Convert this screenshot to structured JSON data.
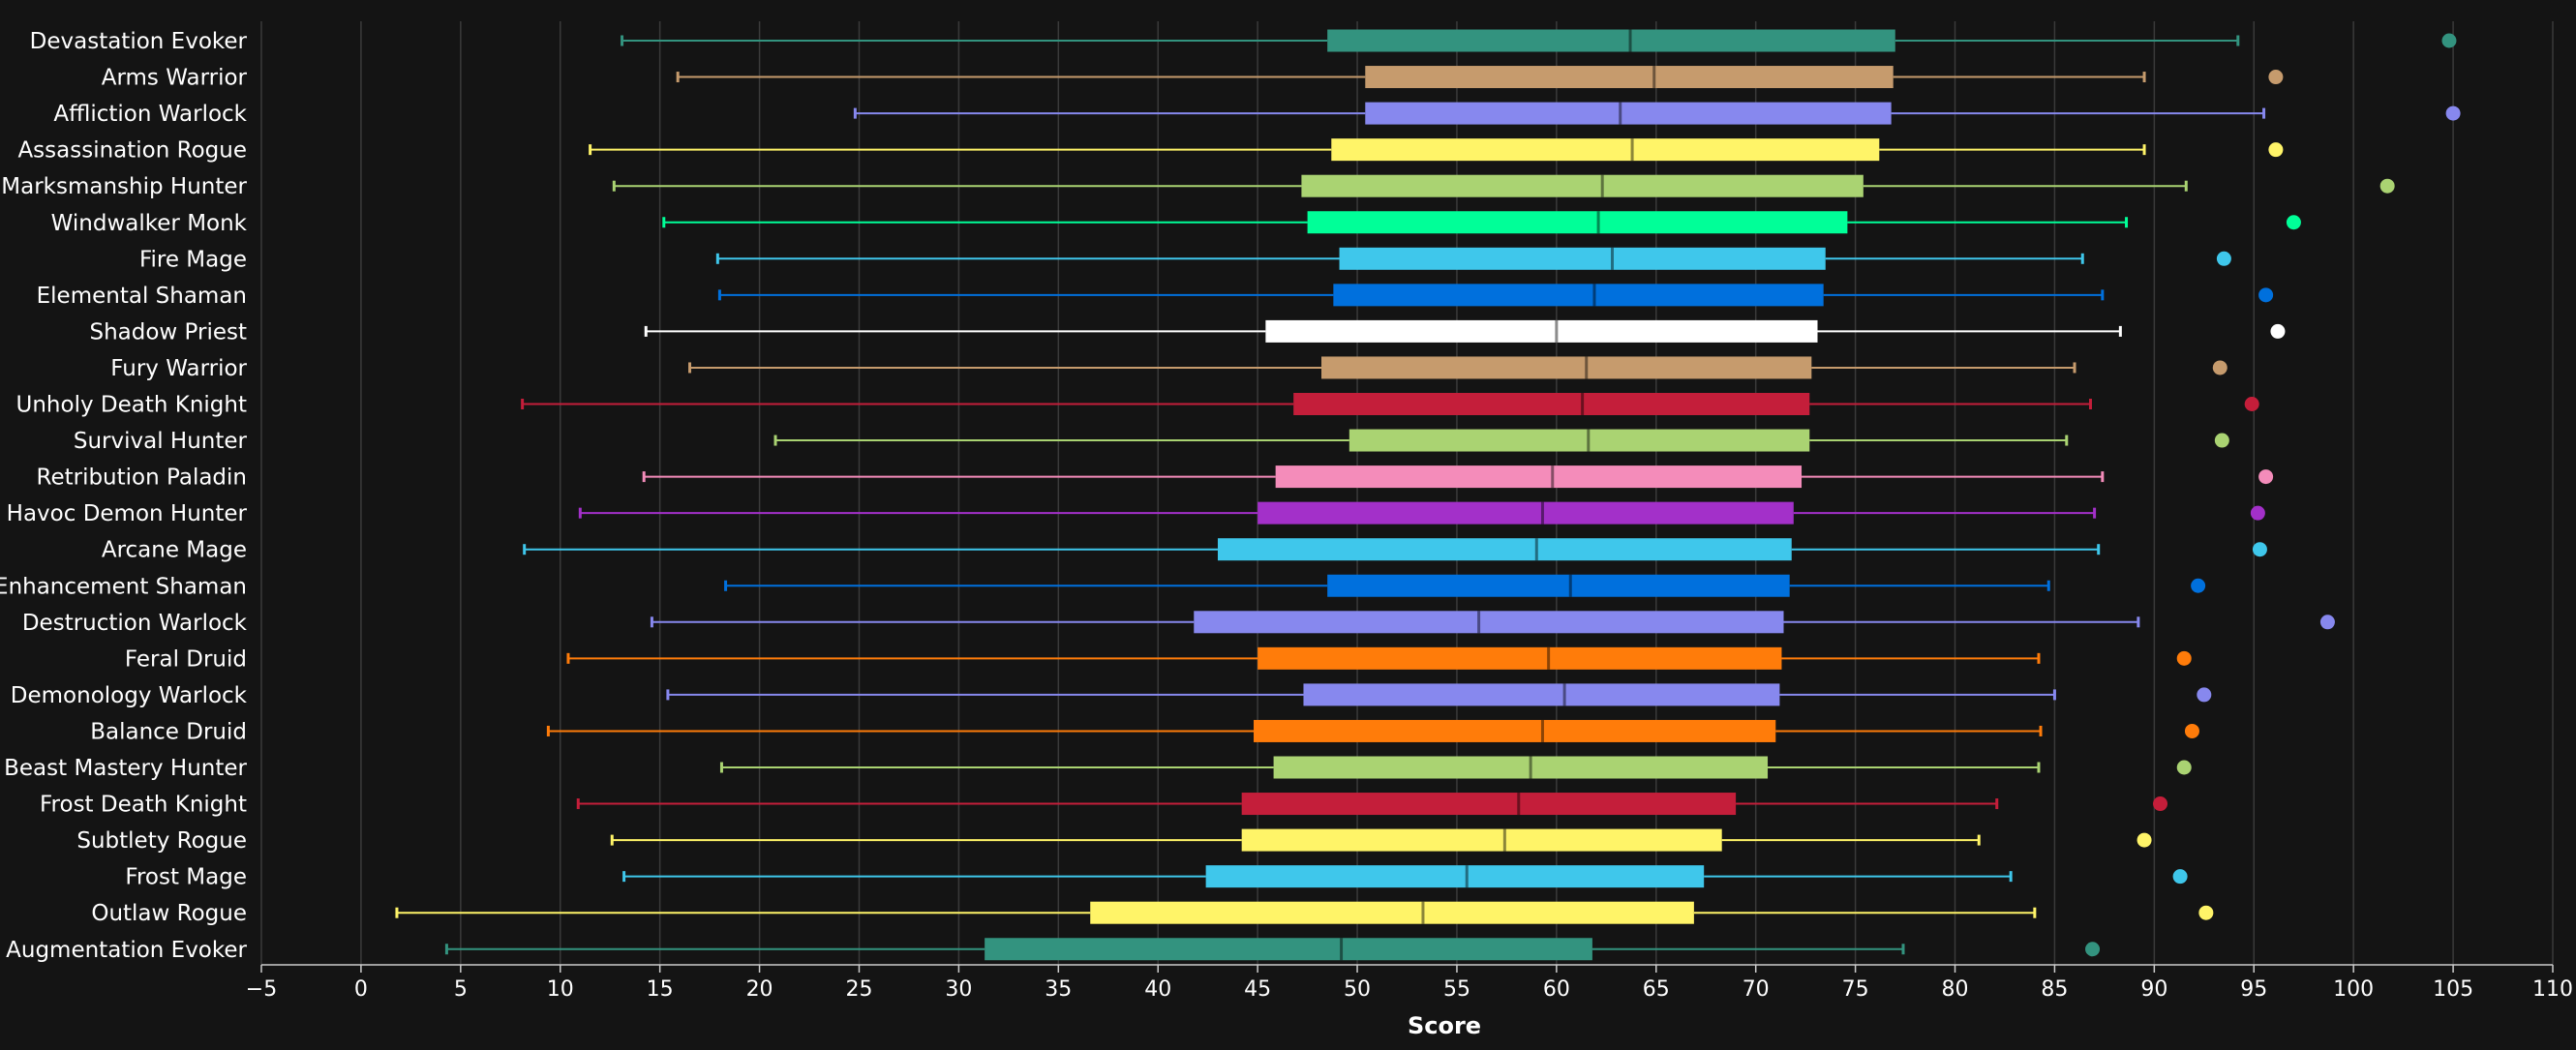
{
  "chart_data": {
    "type": "box",
    "title": "",
    "xlabel": "Score",
    "ylabel": "",
    "xlim": [
      -5,
      110
    ],
    "xticks": [
      "-5",
      "0",
      "5",
      "10",
      "15",
      "20",
      "25",
      "30",
      "35",
      "40",
      "45",
      "50",
      "55",
      "60",
      "65",
      "70",
      "75",
      "80",
      "85",
      "90",
      "95",
      "100",
      "105",
      "110"
    ],
    "grid": true,
    "orientation": "horizontal",
    "categories": [
      "Devastation Evoker",
      "Arms Warrior",
      "Affliction Warlock",
      "Assassination Rogue",
      "Marksmanship Hunter",
      "Windwalker Monk",
      "Fire Mage",
      "Elemental Shaman",
      "Shadow Priest",
      "Fury Warrior",
      "Unholy Death Knight",
      "Survival Hunter",
      "Retribution Paladin",
      "Havoc Demon Hunter",
      "Arcane Mage",
      "Enhancement Shaman",
      "Destruction Warlock",
      "Feral Druid",
      "Demonology Warlock",
      "Balance Druid",
      "Beast Mastery Hunter",
      "Frost Death Knight",
      "Subtlety Rogue",
      "Frost Mage",
      "Outlaw Rogue",
      "Augmentation Evoker"
    ],
    "series": [
      {
        "category": "Devastation Evoker",
        "min": 13.1,
        "q1": 48.5,
        "median": 63.7,
        "q3": 77.0,
        "max": 94.2,
        "outlier": 104.8,
        "color": "#33937f"
      },
      {
        "category": "Arms Warrior",
        "min": 15.9,
        "q1": 50.4,
        "median": 64.9,
        "q3": 76.9,
        "max": 89.5,
        "outlier": 96.1,
        "color": "#c69b6d"
      },
      {
        "category": "Affliction Warlock",
        "min": 24.8,
        "q1": 50.4,
        "median": 63.2,
        "q3": 76.8,
        "max": 95.5,
        "outlier": 105.0,
        "color": "#8788ee"
      },
      {
        "category": "Assassination Rogue",
        "min": 11.5,
        "q1": 48.7,
        "median": 63.8,
        "q3": 76.2,
        "max": 89.5,
        "outlier": 96.1,
        "color": "#fff468"
      },
      {
        "category": "Marksmanship Hunter",
        "min": 12.7,
        "q1": 47.2,
        "median": 62.3,
        "q3": 75.4,
        "max": 91.6,
        "outlier": 101.7,
        "color": "#aad372"
      },
      {
        "category": "Windwalker Monk",
        "min": 15.2,
        "q1": 47.5,
        "median": 62.1,
        "q3": 74.6,
        "max": 88.6,
        "outlier": 97.0,
        "color": "#00ff98"
      },
      {
        "category": "Fire Mage",
        "min": 17.9,
        "q1": 49.1,
        "median": 62.8,
        "q3": 73.5,
        "max": 86.4,
        "outlier": 93.5,
        "color": "#3fc7eb"
      },
      {
        "category": "Elemental Shaman",
        "min": 18.0,
        "q1": 48.8,
        "median": 61.9,
        "q3": 73.4,
        "max": 87.4,
        "outlier": 95.6,
        "color": "#0070dd"
      },
      {
        "category": "Shadow Priest",
        "min": 14.3,
        "q1": 45.4,
        "median": 60.0,
        "q3": 73.1,
        "max": 88.3,
        "outlier": 96.2,
        "color": "#ffffff"
      },
      {
        "category": "Fury Warrior",
        "min": 16.5,
        "q1": 48.2,
        "median": 61.5,
        "q3": 72.8,
        "max": 86.0,
        "outlier": 93.3,
        "color": "#c69b6d"
      },
      {
        "category": "Unholy Death Knight",
        "min": 8.1,
        "q1": 46.8,
        "median": 61.3,
        "q3": 72.7,
        "max": 86.8,
        "outlier": 94.9,
        "color": "#c41e3a"
      },
      {
        "category": "Survival Hunter",
        "min": 20.8,
        "q1": 49.6,
        "median": 61.6,
        "q3": 72.7,
        "max": 85.6,
        "outlier": 93.4,
        "color": "#aad372"
      },
      {
        "category": "Retribution Paladin",
        "min": 14.2,
        "q1": 45.9,
        "median": 59.8,
        "q3": 72.3,
        "max": 87.4,
        "outlier": 95.6,
        "color": "#f48cba"
      },
      {
        "category": "Havoc Demon Hunter",
        "min": 11.0,
        "q1": 45.0,
        "median": 59.3,
        "q3": 71.9,
        "max": 87.0,
        "outlier": 95.2,
        "color": "#a330c9"
      },
      {
        "category": "Arcane Mage",
        "min": 8.2,
        "q1": 43.0,
        "median": 59.0,
        "q3": 71.8,
        "max": 87.2,
        "outlier": 95.3,
        "color": "#3fc7eb"
      },
      {
        "category": "Enhancement Shaman",
        "min": 18.3,
        "q1": 48.5,
        "median": 60.7,
        "q3": 71.7,
        "max": 84.7,
        "outlier": 92.2,
        "color": "#0070dd"
      },
      {
        "category": "Destruction Warlock",
        "min": 14.6,
        "q1": 41.8,
        "median": 56.1,
        "q3": 71.4,
        "max": 89.2,
        "outlier": 98.7,
        "color": "#8788ee"
      },
      {
        "category": "Feral Druid",
        "min": 10.4,
        "q1": 45.0,
        "median": 59.6,
        "q3": 71.3,
        "max": 84.2,
        "outlier": 91.5,
        "color": "#ff7c0a"
      },
      {
        "category": "Demonology Warlock",
        "min": 15.4,
        "q1": 47.3,
        "median": 60.4,
        "q3": 71.2,
        "max": 85.0,
        "outlier": 92.5,
        "color": "#8788ee"
      },
      {
        "category": "Balance Druid",
        "min": 9.4,
        "q1": 44.8,
        "median": 59.3,
        "q3": 71.0,
        "max": 84.3,
        "outlier": 91.9,
        "color": "#ff7c0a"
      },
      {
        "category": "Beast Mastery Hunter",
        "min": 18.1,
        "q1": 45.8,
        "median": 58.7,
        "q3": 70.6,
        "max": 84.2,
        "outlier": 91.5,
        "color": "#aad372"
      },
      {
        "category": "Frost Death Knight",
        "min": 10.9,
        "q1": 44.2,
        "median": 58.1,
        "q3": 69.0,
        "max": 82.1,
        "outlier": 90.3,
        "color": "#c41e3a"
      },
      {
        "category": "Subtlety Rogue",
        "min": 12.6,
        "q1": 44.2,
        "median": 57.4,
        "q3": 68.3,
        "max": 81.2,
        "outlier": 89.5,
        "color": "#fff468"
      },
      {
        "category": "Frost Mage",
        "min": 13.2,
        "q1": 42.4,
        "median": 55.5,
        "q3": 67.4,
        "max": 82.8,
        "outlier": 91.3,
        "color": "#3fc7eb"
      },
      {
        "category": "Outlaw Rogue",
        "min": 1.8,
        "q1": 36.6,
        "median": 53.3,
        "q3": 66.9,
        "max": 84.0,
        "outlier": 92.6,
        "color": "#fff468"
      },
      {
        "category": "Augmentation Evoker",
        "min": 4.3,
        "q1": 31.3,
        "median": 49.2,
        "q3": 61.8,
        "max": 77.4,
        "outlier": 86.9,
        "color": "#33937f"
      }
    ],
    "colors": {
      "background": "#141414",
      "grid": "#3a3a3a",
      "text": "#ffffff",
      "axis": "#cccccc"
    }
  }
}
